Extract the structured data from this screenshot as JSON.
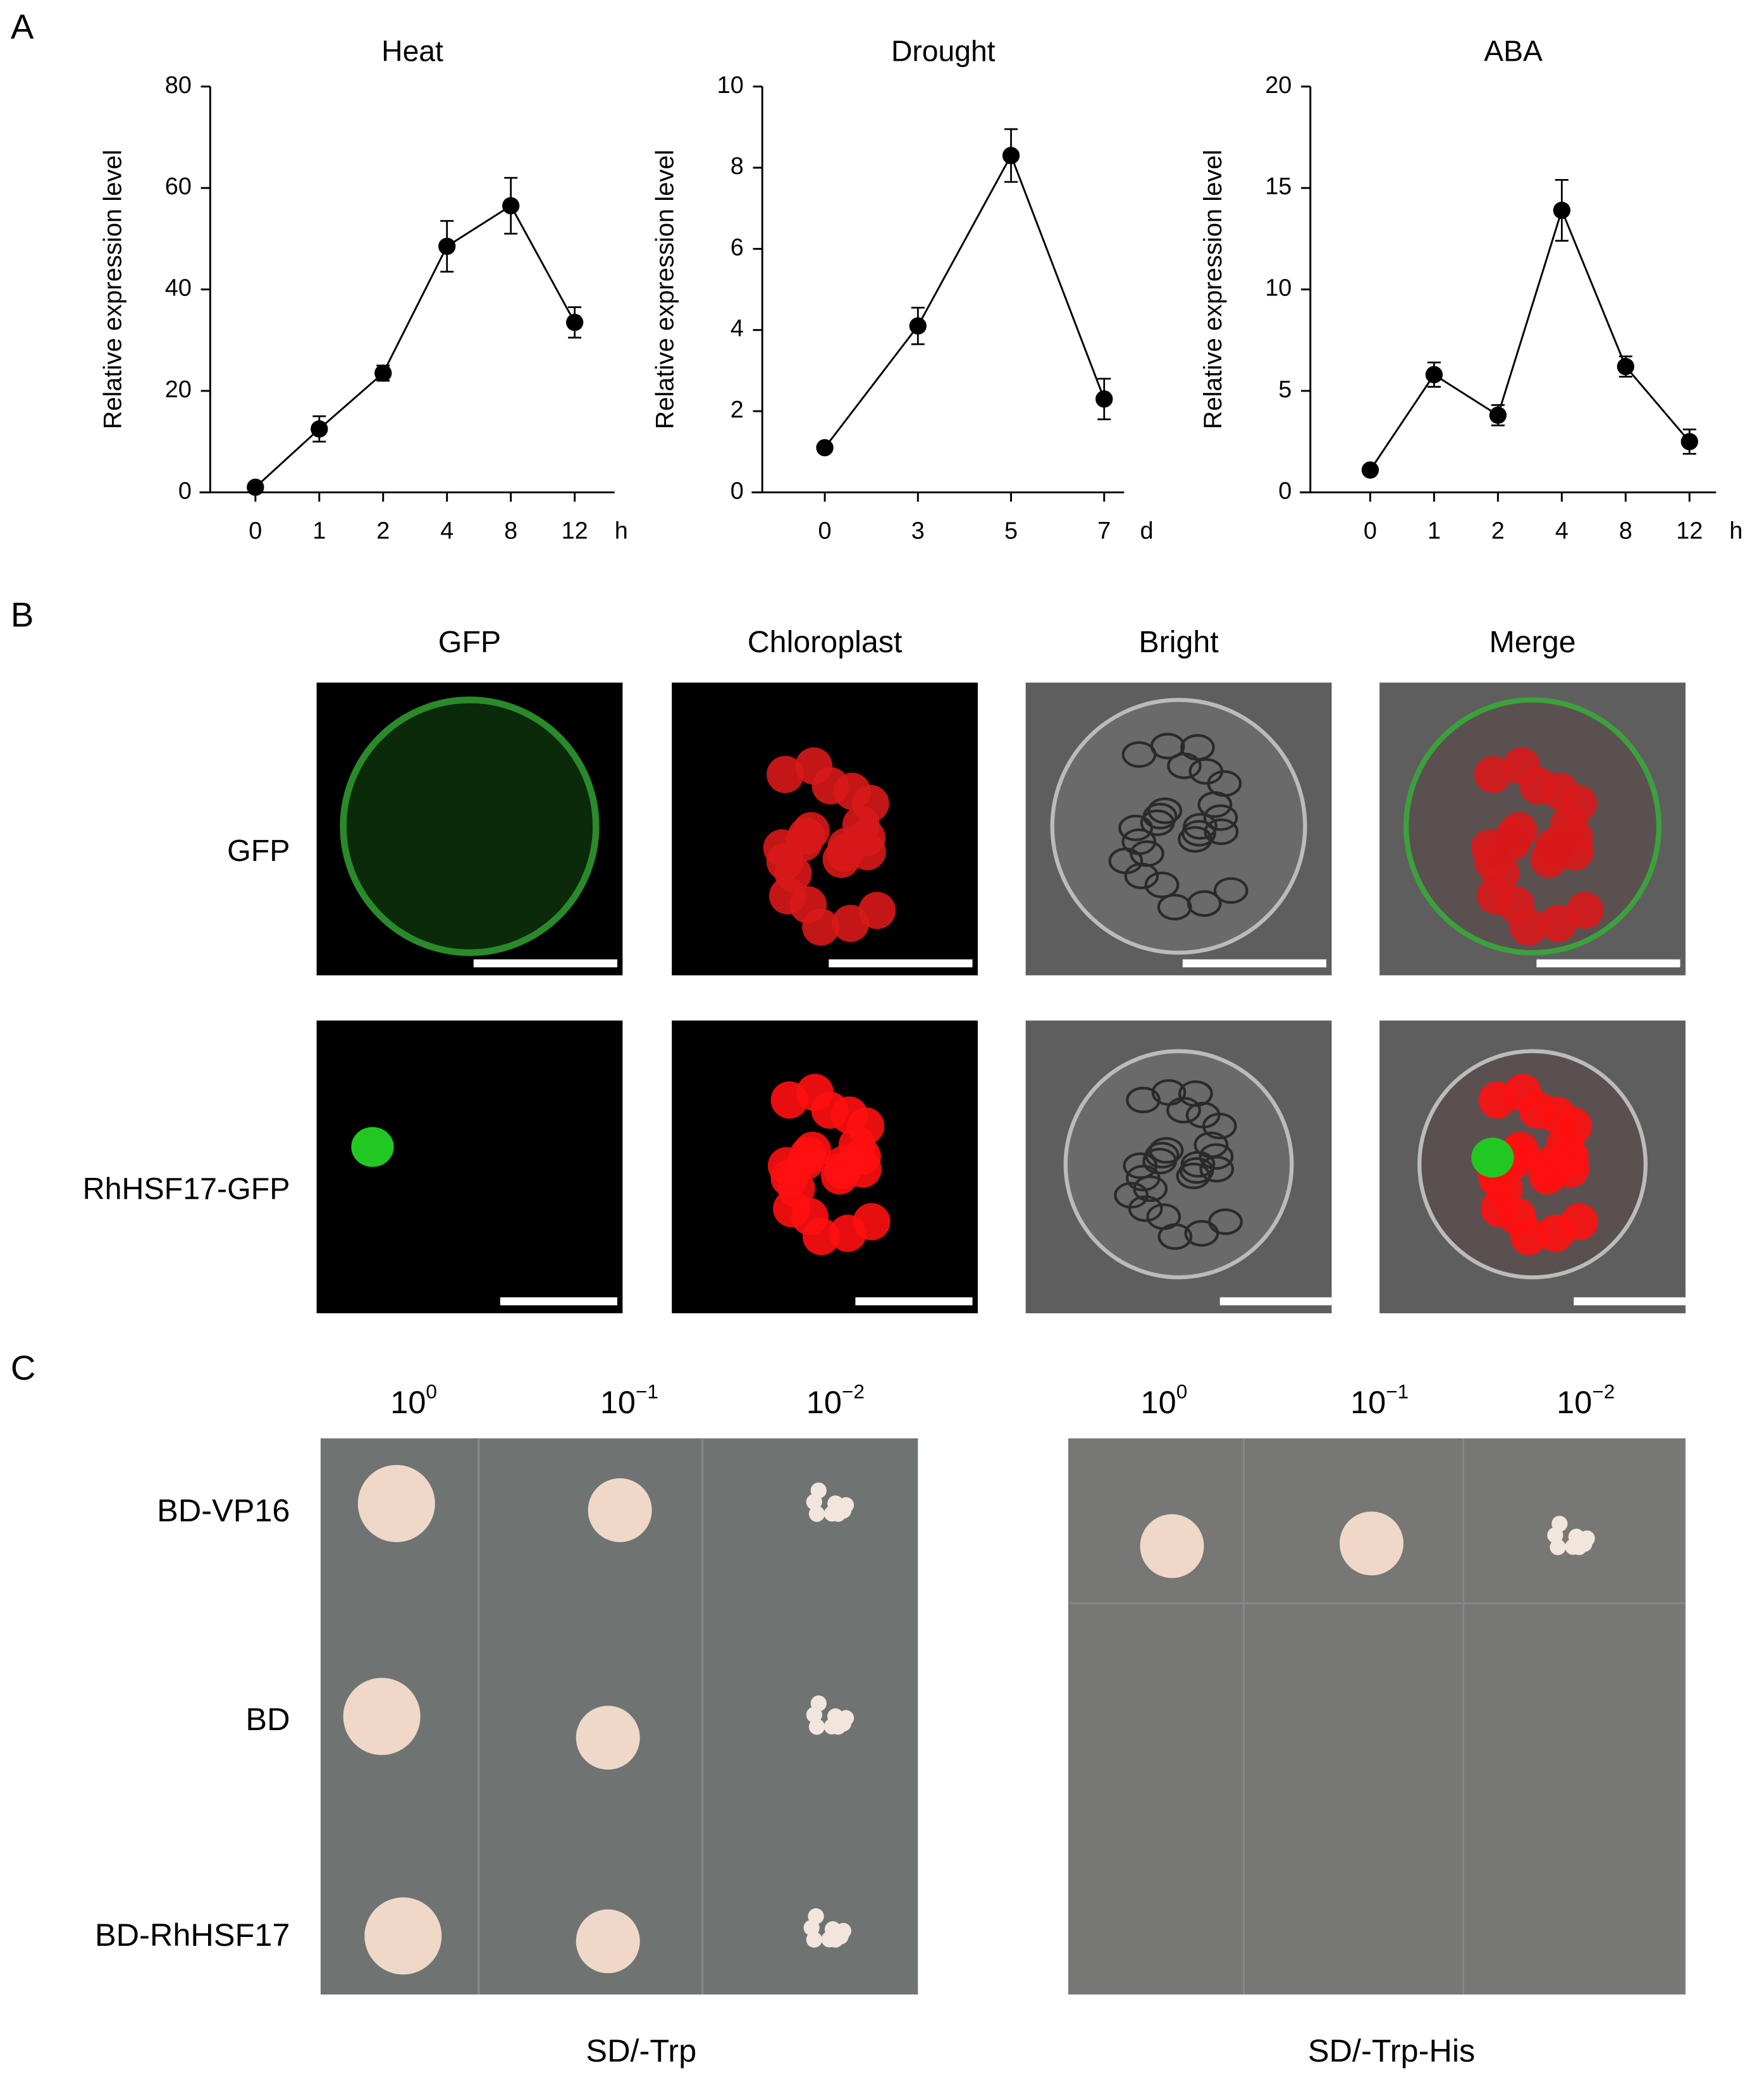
{
  "chart_data": [
    {
      "type": "line",
      "title": "Heat",
      "ylabel": "Relative expression level",
      "x_unit": "h",
      "categories": [
        "0",
        "1",
        "2",
        "4",
        "8",
        "12"
      ],
      "values": [
        1,
        12.5,
        23.5,
        48.5,
        56.5,
        33.5
      ],
      "errors": [
        0.5,
        2.5,
        1.5,
        5,
        5.5,
        3
      ],
      "color": "#000000",
      "ylim": [
        0,
        80
      ],
      "yticks": [
        0,
        20,
        40,
        60,
        80
      ]
    },
    {
      "type": "line",
      "title": "Drought",
      "ylabel": "Relative expression level",
      "x_unit": "d",
      "categories": [
        "0",
        "3",
        "5",
        "7"
      ],
      "values": [
        1.1,
        4.1,
        8.3,
        2.3
      ],
      "errors": [
        0.1,
        0.45,
        0.65,
        0.5
      ],
      "color": "#000000",
      "ylim": [
        0,
        10
      ],
      "yticks": [
        0,
        2,
        4,
        6,
        8,
        10
      ]
    },
    {
      "type": "line",
      "title": "ABA",
      "ylabel": "Relative expression level",
      "x_unit": "h",
      "categories": [
        "0",
        "1",
        "2",
        "4",
        "8",
        "12"
      ],
      "values": [
        1.1,
        5.8,
        3.8,
        13.9,
        6.2,
        2.5
      ],
      "errors": [
        0.1,
        0.6,
        0.5,
        1.5,
        0.5,
        0.6
      ],
      "color": "#000000",
      "ylim": [
        0,
        20
      ],
      "yticks": [
        0,
        5,
        10,
        15,
        20
      ]
    }
  ],
  "panels": {
    "a": "A",
    "b": "B",
    "c": "C"
  },
  "localization": {
    "columns": [
      "GFP",
      "Chloroplast",
      "Bright",
      "Merge"
    ],
    "rows": [
      "GFP",
      "RhHSF17-GFP"
    ]
  },
  "yeast": {
    "dilutions": [
      {
        "base": "10",
        "exp": "0"
      },
      {
        "base": "10",
        "exp": "−1"
      },
      {
        "base": "10",
        "exp": "−2"
      }
    ],
    "rows": [
      "BD-VP16",
      "BD",
      "BD-RhHSF17"
    ],
    "media": [
      "SD/-Trp",
      "SD/-Trp-His"
    ]
  }
}
